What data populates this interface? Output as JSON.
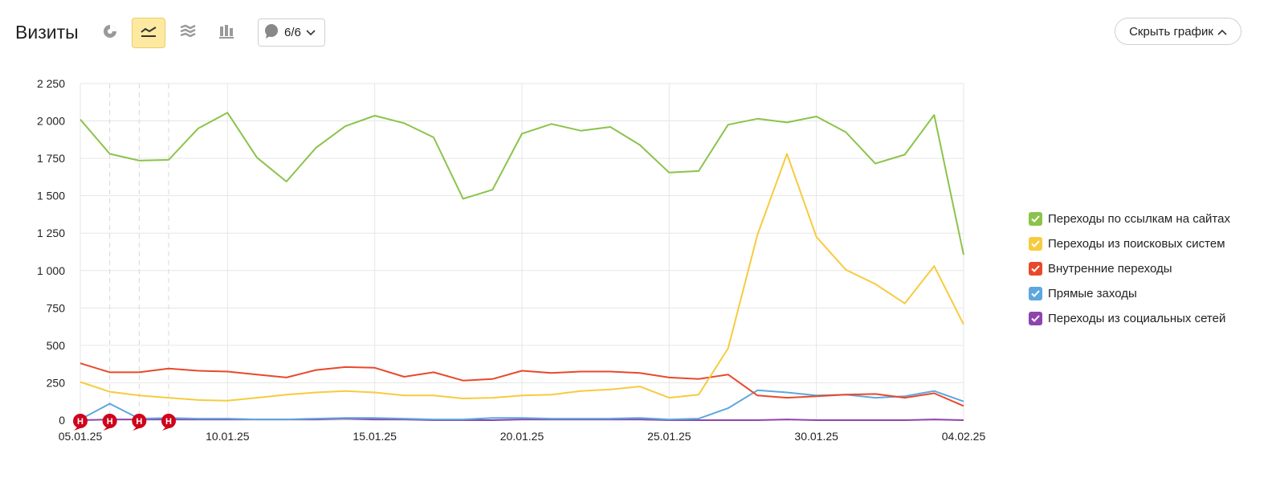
{
  "header": {
    "title": "Визиты",
    "notes_count": "6/6",
    "hide_chart_label": "Скрыть график",
    "icons": [
      "pie-chart-icon",
      "line-chart-icon",
      "area-chart-icon",
      "bar-chart-icon"
    ]
  },
  "colors": {
    "green": "#8bc34a",
    "yellow": "#f7cb3f",
    "red": "#e8492c",
    "blue": "#5ea7de",
    "purple": "#8e44ad",
    "holiday": "#c0392b",
    "note_marker": "#d0021b",
    "active_button": "#fdeaa0"
  },
  "chart_data": {
    "type": "line",
    "title": "Визиты",
    "xlabel": "",
    "ylabel": "",
    "ylim": [
      0,
      2250
    ],
    "yticks": [
      "2 250",
      "2 000",
      "1 750",
      "1 500",
      "1 250",
      "1 000",
      "750",
      "500",
      "250",
      "0"
    ],
    "ytick_values": [
      2250,
      2000,
      1750,
      1500,
      1250,
      1000,
      750,
      500,
      250,
      0
    ],
    "x": [
      "05.01.25",
      "06.01.25",
      "07.01.25",
      "08.01.25",
      "09.01.25",
      "10.01.25",
      "11.01.25",
      "12.01.25",
      "13.01.25",
      "14.01.25",
      "15.01.25",
      "16.01.25",
      "17.01.25",
      "18.01.25",
      "19.01.25",
      "20.01.25",
      "21.01.25",
      "22.01.25",
      "23.01.25",
      "24.01.25",
      "25.01.25",
      "26.01.25",
      "27.01.25",
      "28.01.25",
      "29.01.25",
      "30.01.25",
      "31.01.25",
      "01.02.25",
      "02.02.25",
      "03.02.25",
      "04.02.25"
    ],
    "xticks": [
      {
        "label": "05.01.25",
        "index": 0,
        "holiday": true
      },
      {
        "label": "10.01.25",
        "index": 5,
        "holiday": false
      },
      {
        "label": "15.01.25",
        "index": 10,
        "holiday": false
      },
      {
        "label": "20.01.25",
        "index": 15,
        "holiday": false
      },
      {
        "label": "25.01.25",
        "index": 20,
        "holiday": true
      },
      {
        "label": "30.01.25",
        "index": 25,
        "holiday": false
      },
      {
        "label": "04.02.25",
        "index": 30,
        "holiday": false
      }
    ],
    "grid": true,
    "legend_position": "right",
    "series": [
      {
        "name": "Переходы по ссылкам на сайтах",
        "color": "#8bc34a",
        "values": [
          2010,
          1780,
          1735,
          1740,
          1950,
          2055,
          1755,
          1595,
          1820,
          1965,
          2035,
          1985,
          1890,
          1480,
          1540,
          1915,
          1980,
          1935,
          1960,
          1840,
          1655,
          1665,
          1975,
          2015,
          1990,
          2030,
          1925,
          1715,
          1775,
          2040,
          1105
        ]
      },
      {
        "name": "Переходы из поисковых систем",
        "color": "#f7cb3f",
        "values": [
          255,
          190,
          165,
          150,
          135,
          130,
          150,
          170,
          185,
          195,
          185,
          165,
          165,
          145,
          150,
          165,
          170,
          195,
          205,
          225,
          150,
          170,
          480,
          1240,
          1780,
          1225,
          1005,
          910,
          780,
          1030,
          640
        ]
      },
      {
        "name": "Внутренние переходы",
        "color": "#e8492c",
        "values": [
          380,
          320,
          320,
          345,
          330,
          325,
          305,
          285,
          335,
          355,
          350,
          290,
          320,
          265,
          275,
          330,
          315,
          325,
          325,
          315,
          285,
          275,
          305,
          165,
          150,
          160,
          170,
          175,
          150,
          180,
          95
        ]
      },
      {
        "name": "Прямые заходы",
        "color": "#5ea7de",
        "values": [
          5,
          110,
          10,
          15,
          10,
          10,
          5,
          5,
          10,
          15,
          15,
          10,
          5,
          5,
          15,
          15,
          10,
          10,
          10,
          15,
          5,
          10,
          80,
          200,
          185,
          165,
          170,
          150,
          160,
          195,
          125
        ]
      },
      {
        "name": "Переходы из социальных сетей",
        "color": "#8e44ad",
        "values": [
          0,
          5,
          5,
          5,
          5,
          5,
          5,
          5,
          5,
          10,
          5,
          5,
          0,
          0,
          0,
          5,
          5,
          5,
          5,
          5,
          0,
          0,
          0,
          0,
          5,
          0,
          0,
          0,
          0,
          5,
          0
        ]
      }
    ],
    "notes": [
      {
        "label": "Н",
        "index": 0
      },
      {
        "label": "Н",
        "index": 1
      },
      {
        "label": "Н",
        "index": 2
      },
      {
        "label": "Н",
        "index": 3
      }
    ]
  }
}
